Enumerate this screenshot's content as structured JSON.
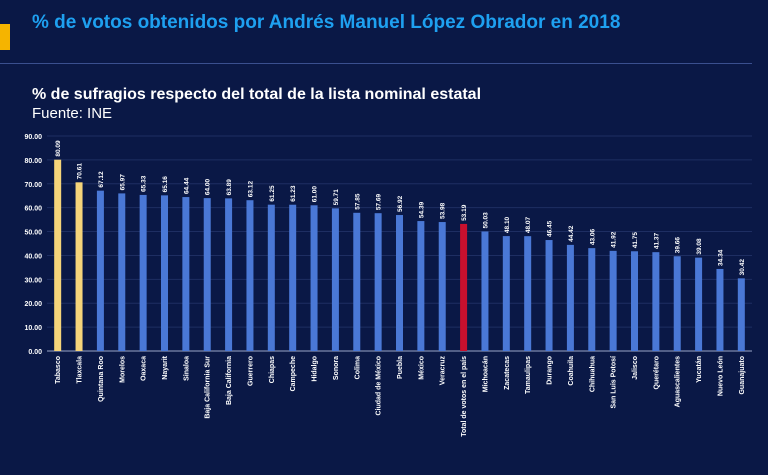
{
  "header": {
    "title": "% de votos obtenidos por  Andrés Manuel López Obrador en 2018",
    "accent_color": "#f5b400",
    "title_color": "#1ea0f0"
  },
  "chart_data": {
    "type": "bar",
    "title": "% de sufragios respecto del total de la lista nominal estatal",
    "subtitle": "Fuente: INE",
    "xlabel": "",
    "ylabel": "",
    "ylim": [
      0,
      90
    ],
    "yticks": [
      "0.00",
      "10.00",
      "20.00",
      "30.00",
      "40.00",
      "50.00",
      "60.00",
      "70.00",
      "80.00",
      "90.00"
    ],
    "grid": true,
    "colors": {
      "default": "#4a78d6",
      "highlight": "#f5d47a",
      "national": "#c8102e"
    },
    "categories": [
      "Tabasco",
      "Tlaxcala",
      "Quintana Roo",
      "Morelos",
      "Oaxaca",
      "Nayarit",
      "Sinaloa",
      "Baja California Sur",
      "Baja California",
      "Guerrero",
      "Chiapas",
      "Campeche",
      "Hidalgo",
      "Sonora",
      "Colima",
      "Ciudad de México",
      "Puebla",
      "México",
      "Veracruz",
      "Total de votos en el país",
      "Michoacán",
      "Zacatecas",
      "Tamaulipas",
      "Durango",
      "Coahuila",
      "Chihuahua",
      "San Luis Potosí",
      "Jalisco",
      "Querétaro",
      "Aguascalientes",
      "Yucatán",
      "Nuevo León",
      "Guanajuato"
    ],
    "values": [
      80.09,
      70.61,
      67.12,
      65.97,
      65.33,
      65.16,
      64.44,
      64.0,
      63.89,
      63.12,
      61.25,
      61.23,
      61.0,
      59.71,
      57.85,
      57.69,
      56.92,
      54.39,
      53.98,
      53.19,
      50.03,
      48.1,
      48.07,
      46.45,
      44.42,
      43.06,
      41.92,
      41.75,
      41.37,
      39.66,
      39.08,
      34.34,
      30.42
    ],
    "value_labels": [
      "80.09",
      "70.61",
      "67.12",
      "65.97",
      "65.33",
      "65.16",
      "64.44",
      "64.00",
      "63.89",
      "63.12",
      "61.25",
      "61.23",
      "61.00",
      "59.71",
      "57.85",
      "57.69",
      "56.92",
      "54.39",
      "53.98",
      "53.19",
      "50.03",
      "48.10",
      "48.07",
      "46.45",
      "44.42",
      "43.06",
      "41.92",
      "41.75",
      "41.37",
      "39.66",
      "39.08",
      "34.34",
      "30.42"
    ],
    "bar_colors": [
      "highlight",
      "highlight",
      "default",
      "default",
      "default",
      "default",
      "default",
      "default",
      "default",
      "default",
      "default",
      "default",
      "default",
      "default",
      "default",
      "default",
      "default",
      "default",
      "default",
      "national",
      "default",
      "default",
      "default",
      "default",
      "default",
      "default",
      "default",
      "default",
      "default",
      "default",
      "default",
      "default",
      "default"
    ]
  }
}
